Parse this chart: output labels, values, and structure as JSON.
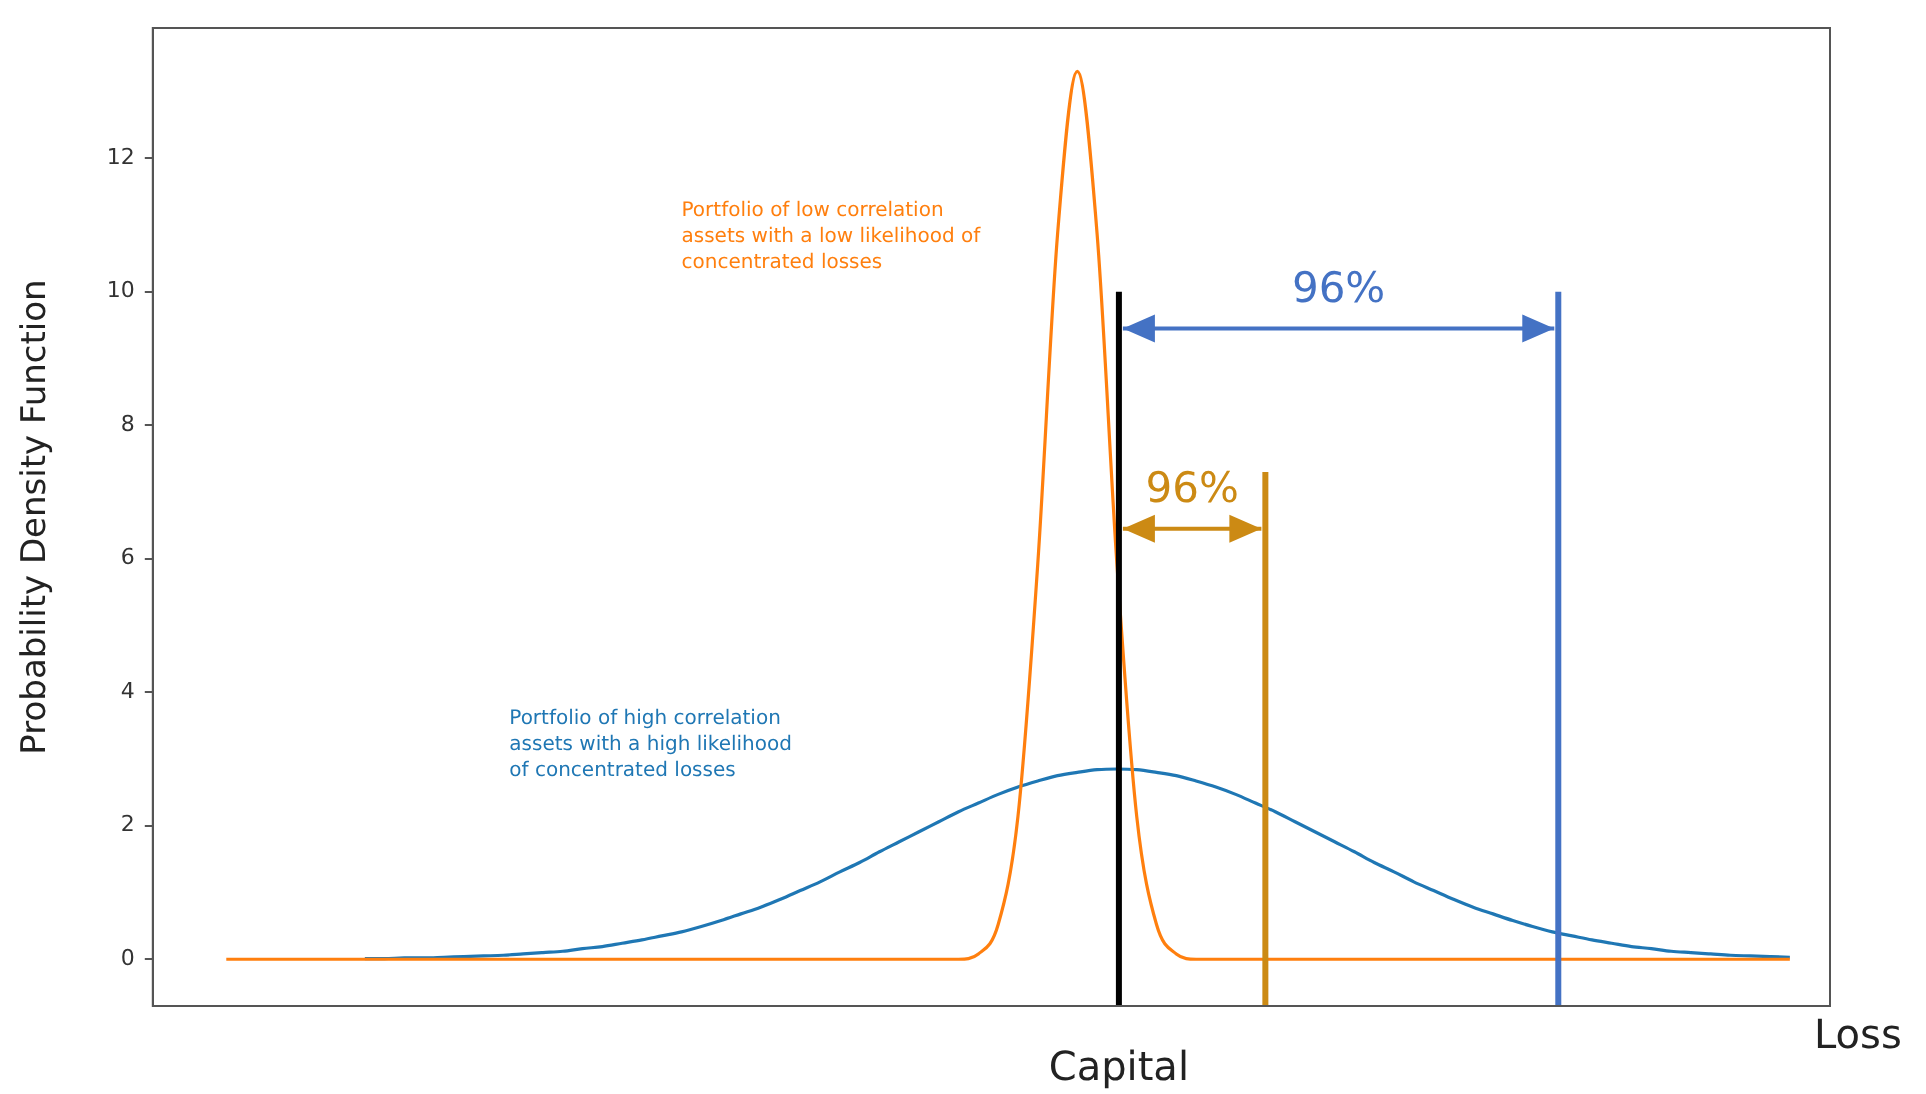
{
  "chart_data": {
    "type": "line",
    "ylabel": "Probability Density Function",
    "xlabel": "Loss",
    "categories": [
      null,
      null,
      null,
      null,
      null,
      null,
      null,
      null,
      null,
      null,
      null,
      null,
      null,
      null,
      null,
      null,
      null,
      null,
      null,
      null,
      null,
      null,
      null,
      null,
      null,
      null,
      null,
      null,
      null,
      null,
      null,
      null,
      null,
      null,
      null,
      null,
      null,
      null,
      null,
      null,
      null,
      null,
      null,
      null,
      null,
      null,
      null,
      null,
      null,
      null,
      null,
      null,
      null,
      null,
      null,
      null,
      null,
      null,
      null,
      null,
      null,
      null,
      null,
      null,
      null,
      null,
      null,
      null,
      null,
      null,
      null,
      null,
      null,
      null,
      null,
      null,
      null,
      null,
      null,
      null
    ],
    "ylim": [
      -0.7,
      13.95
    ],
    "yticks": [
      0,
      2,
      4,
      6,
      8,
      10,
      12
    ],
    "grid": false,
    "legend": false,
    "marker": "none",
    "line_style": "solid",
    "series": [
      {
        "color": "#ff7f0e",
        "values": [
          0,
          0,
          0,
          0,
          0,
          0,
          0,
          0,
          0,
          0,
          0,
          0,
          0,
          0,
          0,
          0,
          0,
          0,
          0,
          0,
          0,
          0,
          0,
          0,
          0,
          0,
          0,
          0,
          0,
          0,
          0,
          0,
          0,
          0,
          0,
          0,
          0,
          0,
          0.08,
          0.52,
          2.14,
          5.92,
          10.86,
          13.3,
          10.86,
          5.92,
          2.14,
          0.52,
          0.08,
          0,
          0,
          0,
          0,
          0,
          0,
          0,
          0,
          0,
          0,
          0,
          0,
          0,
          0,
          0,
          0,
          0,
          0,
          0,
          0,
          0,
          0,
          0,
          0,
          0,
          0,
          0,
          0,
          0,
          0,
          0
        ]
      },
      {
        "color": "#1f77b4",
        "values": [
          null,
          null,
          null,
          null,
          null,
          null,
          null,
          0.01,
          0.01,
          0.02,
          0.02,
          0.03,
          0.04,
          0.05,
          0.06,
          0.08,
          0.1,
          0.12,
          0.16,
          0.19,
          0.24,
          0.29,
          0.35,
          0.41,
          0.49,
          0.58,
          0.68,
          0.78,
          0.9,
          1.03,
          1.16,
          1.31,
          1.45,
          1.61,
          1.76,
          1.91,
          2.06,
          2.21,
          2.34,
          2.47,
          2.58,
          2.67,
          2.75,
          2.8,
          2.84,
          2.85,
          2.84,
          2.8,
          2.75,
          2.67,
          2.58,
          2.47,
          2.34,
          2.21,
          2.06,
          1.91,
          1.76,
          1.61,
          1.45,
          1.31,
          1.16,
          1.03,
          0.9,
          0.78,
          0.68,
          0.58,
          0.49,
          0.41,
          0.35,
          0.29,
          0.24,
          0.19,
          0.16,
          0.12,
          0.1,
          0.08,
          0.06,
          0.05,
          0.04,
          0.03
        ]
      }
    ],
    "annotations": [
      "Portfolio of low correlation assets with a low likelihood of concentrated losses",
      "Portfolio of high correlation assets with a high likelihood of concentrated losses",
      "96%",
      "96%",
      "Capital"
    ]
  }
}
